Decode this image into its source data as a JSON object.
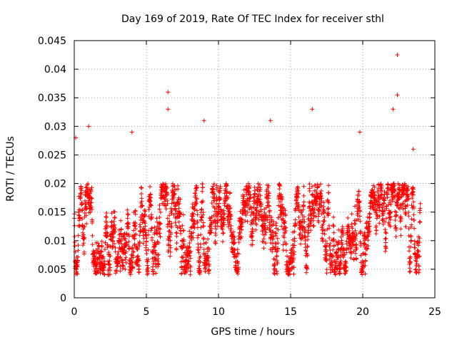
{
  "chart_data": {
    "type": "scatter",
    "title": "Day 169 of 2019, Rate Of TEC Index for receiver sthl",
    "xlabel": "GPS time / hours",
    "ylabel": "ROTI / TECUs",
    "xlim": [
      0,
      25
    ],
    "ylim": [
      0,
      0.045
    ],
    "xticks": [
      0,
      5,
      10,
      15,
      20,
      25
    ],
    "xtick_labels": [
      "0",
      "5",
      "10",
      "15",
      "20",
      "25"
    ],
    "yticks": [
      0,
      0.005,
      0.01,
      0.015,
      0.02,
      0.025,
      0.03,
      0.035,
      0.04,
      0.045
    ],
    "ytick_labels": [
      "0",
      "0.005",
      "0.01",
      "0.015",
      "0.02",
      "0.025",
      "0.03",
      "0.035",
      "0.04",
      "0.045"
    ],
    "grid": true,
    "marker": "+",
    "color": "#ff0000",
    "series": [
      {
        "name": "ROTI",
        "x_range": [
          0,
          24
        ],
        "typical_range": [
          0.004,
          0.02
        ],
        "notable_points": [
          {
            "x": 0.1,
            "y": 0.028
          },
          {
            "x": 1.0,
            "y": 0.03
          },
          {
            "x": 4.0,
            "y": 0.029
          },
          {
            "x": 6.5,
            "y": 0.036
          },
          {
            "x": 6.5,
            "y": 0.033
          },
          {
            "x": 9.0,
            "y": 0.031
          },
          {
            "x": 13.6,
            "y": 0.031
          },
          {
            "x": 16.5,
            "y": 0.033
          },
          {
            "x": 19.8,
            "y": 0.029
          },
          {
            "x": 22.1,
            "y": 0.033
          },
          {
            "x": 22.4,
            "y": 0.0425
          },
          {
            "x": 22.4,
            "y": 0.0355
          },
          {
            "x": 23.5,
            "y": 0.026
          }
        ]
      }
    ]
  }
}
